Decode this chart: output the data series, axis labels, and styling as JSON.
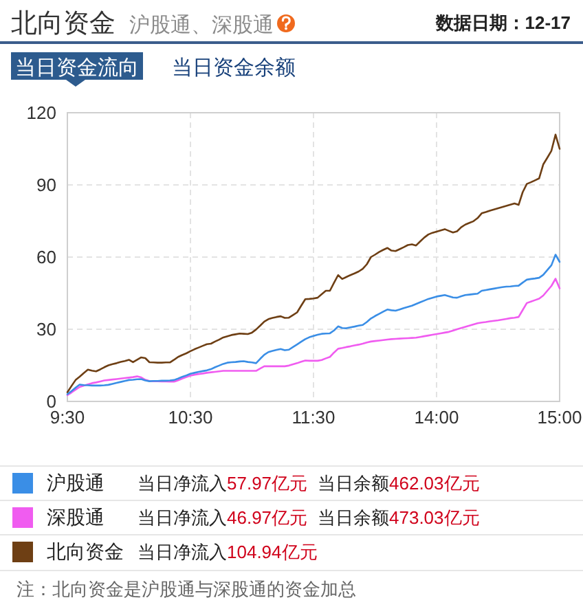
{
  "chart_data": {
    "type": "line",
    "title": "北向资金",
    "subtitle": "沪股通、深股通",
    "annotations": [
      "数据日期：12-17",
      "当日资金流向",
      "当日资金余额",
      "当日净流入57.97亿元",
      "当日余额462.03亿元",
      "当日净流入46.97亿元",
      "当日余额473.03亿元",
      "当日净流入104.94亿元",
      "注：北向资金是沪股通与深股通的资金加总"
    ],
    "categories": [
      "9:30",
      null,
      null,
      null,
      null,
      null,
      null,
      null,
      null,
      null,
      null,
      null,
      null,
      null,
      null,
      null,
      null,
      null,
      null,
      null,
      null,
      null,
      null,
      null,
      null,
      null,
      null,
      null,
      null,
      null,
      "10:30",
      null,
      null,
      null,
      null,
      null,
      null,
      null,
      null,
      null,
      null,
      null,
      null,
      null,
      null,
      null,
      null,
      null,
      null,
      null,
      null,
      null,
      null,
      null,
      null,
      null,
      null,
      null,
      null,
      null,
      "11:30",
      null,
      null,
      null,
      null,
      null,
      null,
      null,
      null,
      null,
      null,
      null,
      null,
      null,
      null,
      null,
      null,
      null,
      null,
      null,
      null,
      null,
      null,
      null,
      null,
      null,
      null,
      null,
      null,
      null,
      "14:00",
      null,
      null,
      null,
      null,
      null,
      null,
      null,
      null,
      null,
      null,
      null,
      null,
      null,
      null,
      null,
      null,
      null,
      null,
      null,
      null,
      null,
      null,
      null,
      null,
      null,
      null,
      null,
      null,
      null,
      "15:00"
    ],
    "ylim": [
      0,
      120
    ],
    "yticks": [
      0,
      30,
      60,
      90,
      120
    ],
    "grid": true,
    "legend": "bottom",
    "series": [
      {
        "name": "沪股通",
        "color": "#3a8ee6",
        "values": [
          3,
          4.3,
          5.7,
          7,
          6.8,
          6.7,
          6.6,
          6.6,
          6.6,
          6.7,
          6.9,
          7.3,
          7.7,
          8.1,
          8.5,
          8.9,
          9,
          9.2,
          9.3,
          8.7,
          8.4,
          8.5,
          8.5,
          8.6,
          8.6,
          8.7,
          8.9,
          9.5,
          10.2,
          10.8,
          11.5,
          11.9,
          12.3,
          12.6,
          12.9,
          13.4,
          14.2,
          14.9,
          15.6,
          16.1,
          16.3,
          16.4,
          16.6,
          16.7,
          16.4,
          16.2,
          15.9,
          17.7,
          19.4,
          20.5,
          21,
          21.4,
          21.8,
          21.3,
          21.5,
          22.6,
          23.7,
          24.8,
          25.9,
          26.7,
          27.2,
          27.7,
          28.1,
          28.2,
          28.3,
          29.5,
          31.2,
          30.5,
          30.4,
          30.8,
          31.1,
          31.5,
          31.8,
          33,
          34.5,
          35.5,
          36.4,
          37.3,
          38.2,
          37.9,
          37.7,
          38.2,
          38.8,
          39.3,
          39.8,
          40.5,
          41.2,
          41.9,
          42.6,
          43.1,
          43.6,
          43.9,
          44.2,
          43.7,
          43.2,
          43.1,
          43.7,
          44.2,
          44.4,
          44.6,
          44.8,
          46,
          46.3,
          46.6,
          46.9,
          47.2,
          47.5,
          47.7,
          47.8,
          48,
          48.1,
          49.4,
          50.6,
          50.9,
          51.1,
          51.4,
          52.6,
          54.6,
          56.6,
          61,
          58
        ]
      },
      {
        "name": "深股通",
        "color": "#f05cf0",
        "values": [
          2.6,
          3.7,
          4.9,
          6,
          6.6,
          7.1,
          7.6,
          7.9,
          8.3,
          8.7,
          8.9,
          9.1,
          9.3,
          9.5,
          9.7,
          9.9,
          10.1,
          10.4,
          10,
          9,
          8.5,
          8.4,
          8.4,
          8.3,
          8.3,
          8.2,
          8.2,
          8.8,
          9.5,
          10.1,
          10.7,
          11.1,
          11.4,
          11.6,
          11.9,
          12.1,
          12.3,
          12.5,
          12.7,
          12.7,
          12.7,
          12.7,
          12.7,
          12.7,
          12.7,
          12.7,
          12.7,
          13.7,
          14.6,
          14.6,
          14.6,
          14.6,
          14.6,
          14.6,
          14.9,
          15.4,
          15.9,
          16.5,
          17,
          16.9,
          16.9,
          16.9,
          17.2,
          17.9,
          18.5,
          20.3,
          21.9,
          22.2,
          22.6,
          22.9,
          23.3,
          23.6,
          24,
          24.5,
          24.9,
          25.1,
          25.3,
          25.5,
          25.7,
          25.9,
          26,
          26.1,
          26.2,
          26.3,
          26.4,
          26.5,
          26.8,
          27.1,
          27.4,
          27.7,
          28,
          28.3,
          28.6,
          28.9,
          29.4,
          30,
          30.5,
          31,
          31.5,
          32,
          32.5,
          32.8,
          33,
          33.3,
          33.5,
          33.7,
          34,
          34.3,
          34.6,
          34.8,
          35.1,
          38,
          40.9,
          41.5,
          42.1,
          42.7,
          44,
          46,
          48,
          51,
          47
        ]
      },
      {
        "name": "北向资金",
        "color": "#6e3f14",
        "values": [
          3.8,
          6.4,
          8.9,
          10.3,
          11.8,
          13.2,
          12.8,
          12.5,
          13.3,
          14.2,
          15,
          15.5,
          15.9,
          16.4,
          16.8,
          17.3,
          16.3,
          17.3,
          18.3,
          18,
          16.3,
          16.2,
          16.1,
          16.1,
          16.2,
          16.2,
          17.3,
          18.5,
          19.3,
          20,
          20.9,
          21.7,
          22.4,
          23.1,
          23.8,
          24,
          24.9,
          25.7,
          26.6,
          27.1,
          27.6,
          27.9,
          28.2,
          28.1,
          28,
          28.6,
          29.9,
          31.5,
          33.2,
          34.2,
          34.7,
          35.1,
          35.4,
          34.7,
          34.8,
          35.9,
          37,
          39.8,
          42.5,
          42.6,
          42.8,
          43.1,
          44.6,
          46,
          46,
          49.3,
          52.5,
          50.9,
          51.7,
          52.5,
          53.2,
          54,
          55.1,
          57,
          60,
          61,
          62.1,
          63,
          63.8,
          62.7,
          62.5,
          63.3,
          64.1,
          65,
          65.3,
          64.8,
          66.5,
          68.1,
          69.4,
          70.1,
          70.6,
          71.1,
          71.6,
          70.9,
          70.2,
          70.7,
          72.4,
          73.5,
          74.2,
          74.9,
          76.2,
          78.2,
          78.7,
          79.3,
          79.8,
          80.3,
          80.8,
          81.3,
          81.8,
          82.3,
          81.7,
          87,
          90.4,
          91.1,
          91.9,
          92.7,
          98.5,
          101.3,
          104.2,
          110.9,
          105
        ]
      }
    ]
  }
}
